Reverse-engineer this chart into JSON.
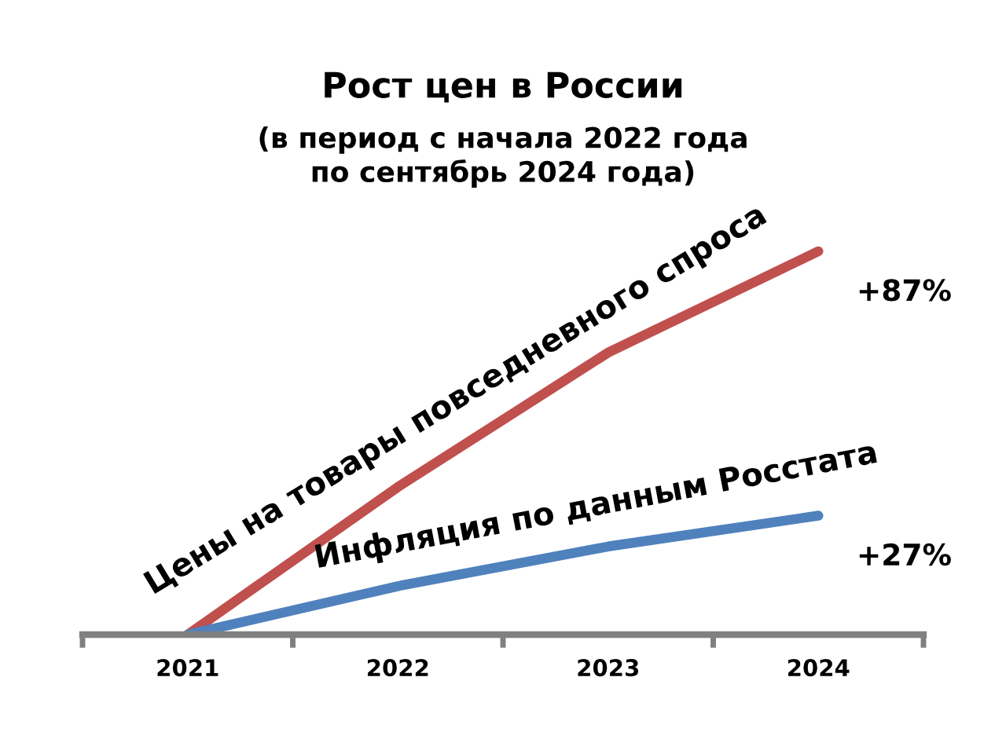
{
  "chart_data": {
    "type": "line",
    "title": "Рост цен в России",
    "subtitle": "(в период с начала 2022 года\nпо сентябрь 2024 года)",
    "categories": [
      "2021",
      "2022",
      "2023",
      "2024"
    ],
    "series": [
      {
        "name": "Цены на товары повседневного спроса",
        "color": "#c0504d",
        "values": [
          0,
          33.5,
          64,
          87
        ],
        "value_labels": [
          null,
          null,
          null,
          "+87%"
        ]
      },
      {
        "name": "Инфляция по данным Росстата",
        "color": "#4f81bd",
        "values": [
          0,
          11,
          20,
          27
        ],
        "value_labels": [
          null,
          null,
          null,
          "+27%"
        ]
      }
    ],
    "tick_labels": "x"
  }
}
